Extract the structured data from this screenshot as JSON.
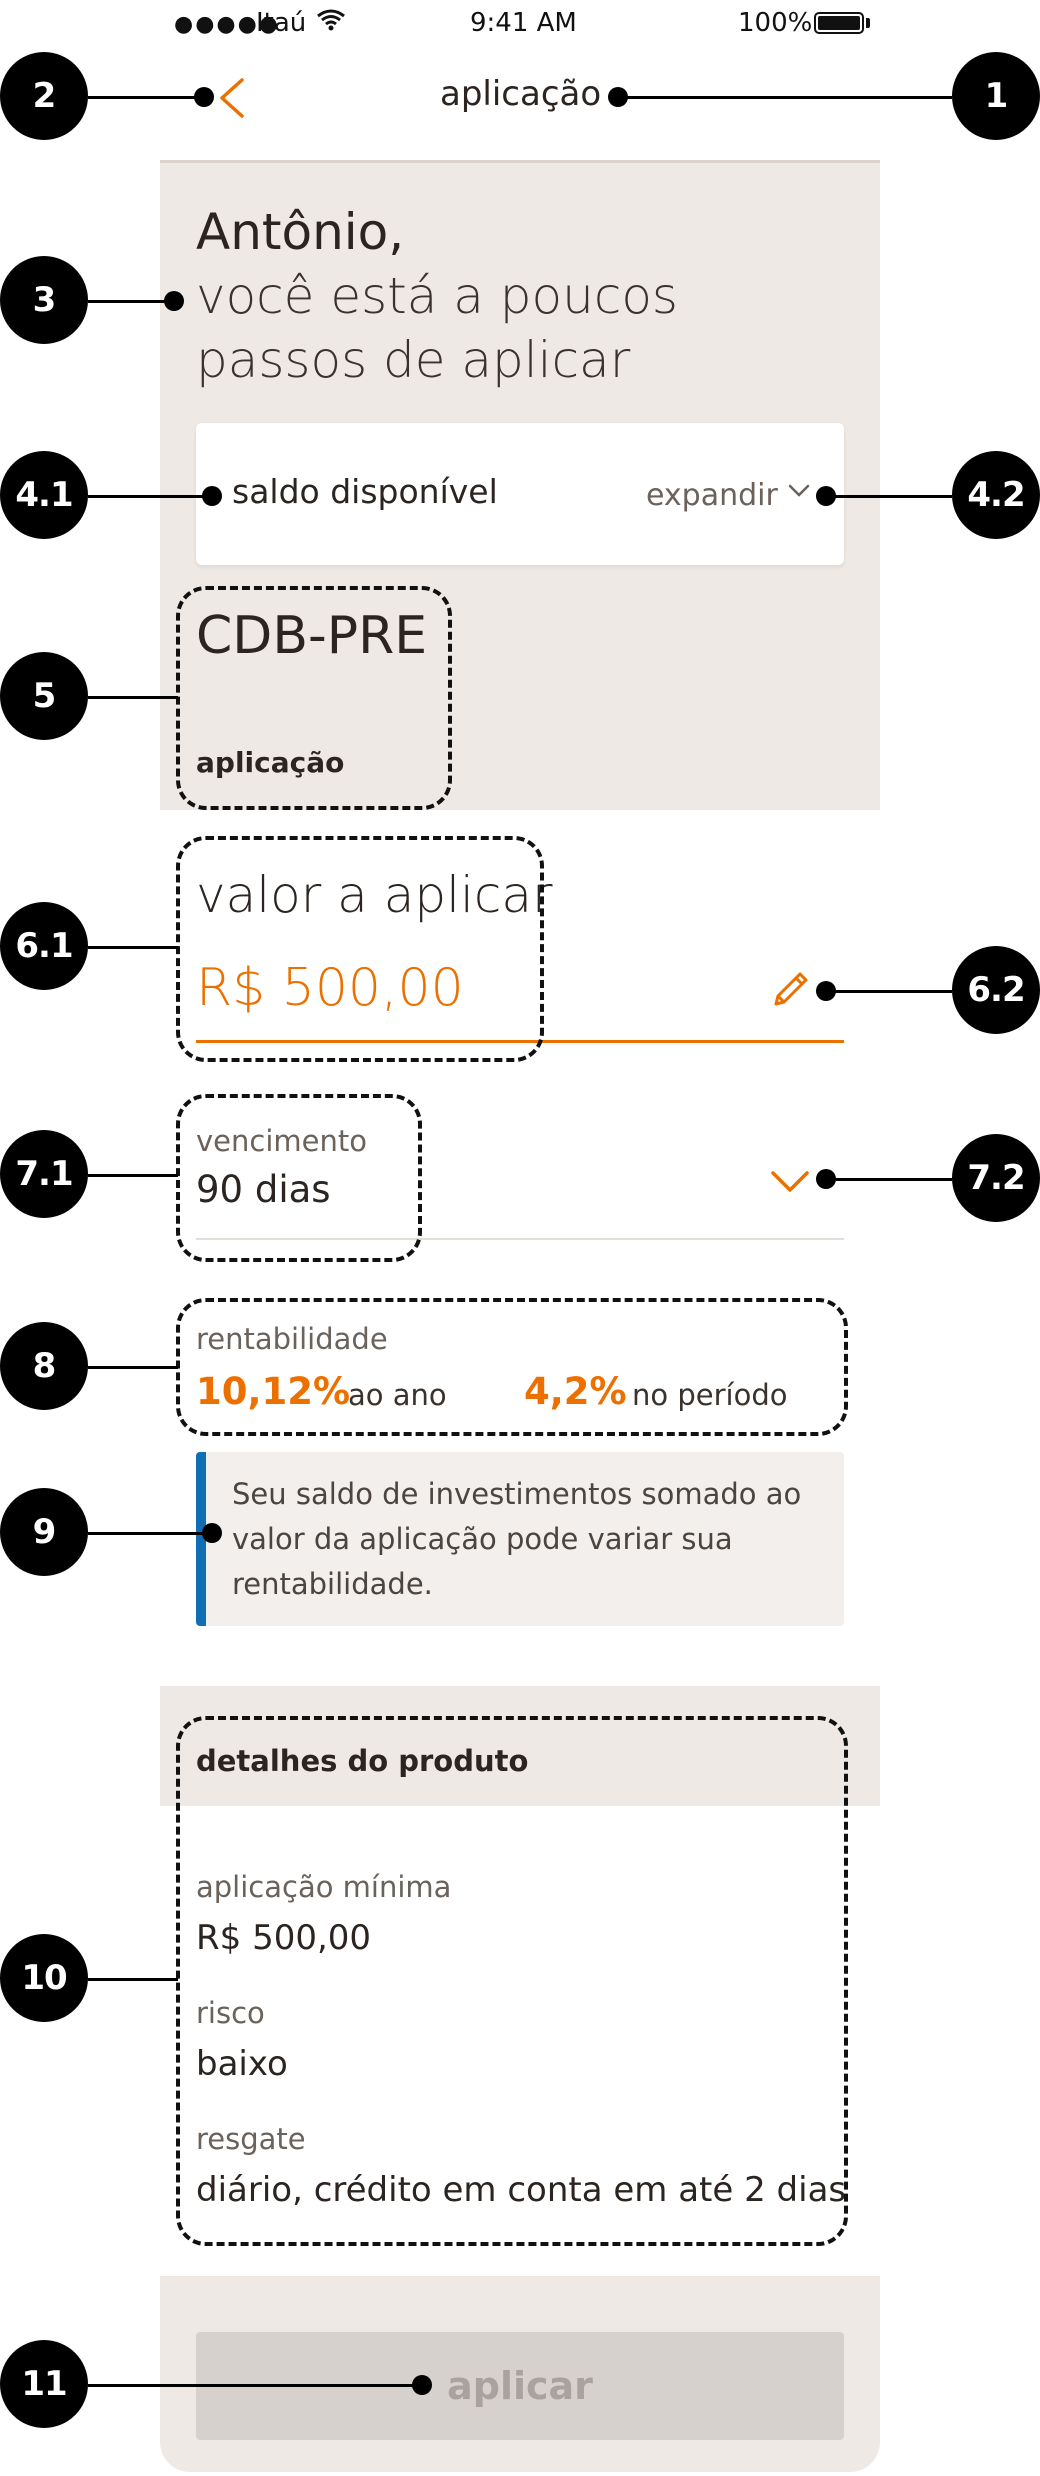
{
  "status_bar": {
    "signal": "●●●●●",
    "carrier": "Itaú",
    "wifi": "wifi-icon",
    "time": "9:41 AM",
    "battery": "100%"
  },
  "header": {
    "title": "aplicação",
    "back_icon": "chevron-left-icon"
  },
  "greeting": {
    "name": "Antônio,",
    "line2": "você está a poucos",
    "line3": "passos de aplicar"
  },
  "saldo": {
    "label": "saldo disponível",
    "expand_label": "expandir"
  },
  "product": {
    "name": "CDB-PRE",
    "type": "aplicação"
  },
  "valor": {
    "label": "valor a aplicar",
    "amount": "R$ 500,00"
  },
  "vencimento": {
    "label": "vencimento",
    "value": "90 dias"
  },
  "rentabilidade": {
    "label": "rentabilidade",
    "annual_value": "10,12%",
    "annual_unit": "ao ano",
    "period_value": "4,2%",
    "period_unit": "no período"
  },
  "info": {
    "text": "Seu saldo de investimentos somado ao valor da aplicação pode variar sua rentabilidade."
  },
  "details": {
    "title": "detalhes do produto",
    "items": [
      {
        "label": "aplicação mínima",
        "value": "R$ 500,00"
      },
      {
        "label": "risco",
        "value": "baixo"
      },
      {
        "label": "resgate",
        "value": "diário, crédito em conta em até 2 dias"
      }
    ]
  },
  "apply_button": {
    "label": "aplicar"
  },
  "colors": {
    "accent": "#ec7000",
    "info_bar": "#106eb4",
    "beige": "#efe9e5"
  },
  "annotations": [
    "1",
    "2",
    "3",
    "4.1",
    "4.2",
    "5",
    "6.1",
    "6.2",
    "7.1",
    "7.2",
    "8",
    "9",
    "10",
    "11"
  ]
}
